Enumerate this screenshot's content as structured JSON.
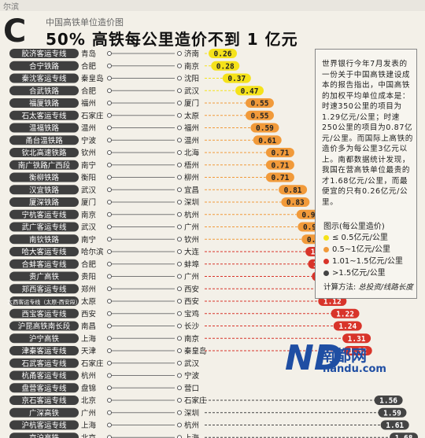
{
  "header": {
    "corner_text": "尔滨",
    "subtitle": "中国高铁单位造价图",
    "title": "50% 高铁每公里造价不到 1 亿元"
  },
  "info": {
    "text": "世界银行今年7月发表的一份关于中国高铁建设成本的报告指出，中国高铁的加权平均单位成本是：时速350公里的项目为1.29亿元/公里；时速250公里的项目为0.87亿元/公里。而国际上高铁的造价多为每公里3亿元以上。南都数据统计发现，我国在营高铁单位最贵的才1.68亿元/公里，而最便宜的只有0.26亿元/公里。",
    "legend_title": "图示(每公里造价)",
    "legend": [
      {
        "label": "≤ 0.5亿元/公里",
        "color": "#f5e21a"
      },
      {
        "label": "0.5~1亿元/公里",
        "color": "#f19a3a"
      },
      {
        "label": "1.01~1.5亿元/公里",
        "color": "#d8342a"
      },
      {
        "label": ">1.5亿元/公里",
        "color": "#444444"
      }
    ],
    "formula_label": "计算方法:",
    "formula": "总投资/线路长度"
  },
  "watermark": {
    "logo": "ND",
    "name": "南都网",
    "url": "nandu.com"
  },
  "chart_data": {
    "type": "bar",
    "title": "50% 高铁每公里造价不到 1 亿元",
    "unit": "亿元/公里",
    "colors": {
      "le05": "#f5e21a",
      "05to1": "#f19a3a",
      "101to15": "#d8342a",
      "gt15": "#444444"
    },
    "rows": [
      {
        "line": "胶济客运专线",
        "from": "青岛",
        "to": "济南",
        "value": 0.26
      },
      {
        "line": "合宁铁路",
        "from": "合肥",
        "to": "南京",
        "value": 0.28
      },
      {
        "line": "秦沈客运专线",
        "from": "秦皇岛",
        "to": "沈阳",
        "value": 0.37
      },
      {
        "line": "合武铁路",
        "from": "合肥",
        "to": "武汉",
        "value": 0.47
      },
      {
        "line": "福厦铁路",
        "from": "福州",
        "to": "厦门",
        "value": 0.55
      },
      {
        "line": "石太客运专线",
        "from": "石家庄",
        "to": "太原",
        "value": 0.55
      },
      {
        "line": "温福铁路",
        "from": "温州",
        "to": "福州",
        "value": 0.59
      },
      {
        "line": "甬台温铁路",
        "from": "宁波",
        "to": "温州",
        "value": 0.61
      },
      {
        "line": "钦北高速铁路",
        "from": "钦州",
        "to": "北海",
        "value": 0.71
      },
      {
        "line": "南广铁路广西段",
        "from": "南宁",
        "to": "梧州",
        "value": 0.71
      },
      {
        "line": "衡柳铁路",
        "from": "衡阳",
        "to": "柳州",
        "value": 0.71
      },
      {
        "line": "汉宜铁路",
        "from": "武汉",
        "to": "宜昌",
        "value": 0.81
      },
      {
        "line": "厦深铁路",
        "from": "厦门",
        "to": "深圳",
        "value": 0.83
      },
      {
        "line": "宁杭客运专线",
        "from": "南京",
        "to": "杭州",
        "value": 0.95
      },
      {
        "line": "武广客运专线",
        "from": "武汉",
        "to": "广州",
        "value": 0.96
      },
      {
        "line": "南钦铁路",
        "from": "南宁",
        "to": "钦州",
        "value": 0.99
      },
      {
        "line": "哈大客运专线",
        "from": "哈尔滨",
        "to": "大连",
        "value": 1.02
      },
      {
        "line": "合蚌客运专线",
        "from": "合肥",
        "to": "蚌埠",
        "value": 1.04
      },
      {
        "line": "贵广高铁",
        "from": "贵阳",
        "to": "广州",
        "value": 1.07
      },
      {
        "line": "郑西客运专线",
        "from": "郑州",
        "to": "西安",
        "value": 1.1
      },
      {
        "line": "大西客运专线（太原-西安段）",
        "from": "太原",
        "to": "西安",
        "value": 1.12
      },
      {
        "line": "西宝客运专线",
        "from": "西安",
        "to": "宝鸡",
        "value": 1.22
      },
      {
        "line": "沪昆高铁南长段",
        "from": "南昌",
        "to": "长沙",
        "value": 1.24
      },
      {
        "line": "沪宁高铁",
        "from": "上海",
        "to": "南京",
        "value": 1.31
      },
      {
        "line": "津秦客运专线",
        "from": "天津",
        "to": "秦皇岛",
        "value": 1.32
      },
      {
        "line": "石武客运专线",
        "from": "石家庄",
        "to": "武汉",
        "value": null
      },
      {
        "line": "杭甬客运专线",
        "from": "杭州",
        "to": "宁波",
        "value": null
      },
      {
        "line": "盘营客运专线",
        "from": "盘锦",
        "to": "营口",
        "value": null
      },
      {
        "line": "京石客运专线",
        "from": "北京",
        "to": "石家庄",
        "value": 1.56
      },
      {
        "line": "广深高铁",
        "from": "广州",
        "to": "深圳",
        "value": 1.59
      },
      {
        "line": "沪杭客运专线",
        "from": "上海",
        "to": "杭州",
        "value": 1.61
      },
      {
        "line": "京沪高铁",
        "from": "北京",
        "to": "上海",
        "value": 1.68
      }
    ]
  }
}
